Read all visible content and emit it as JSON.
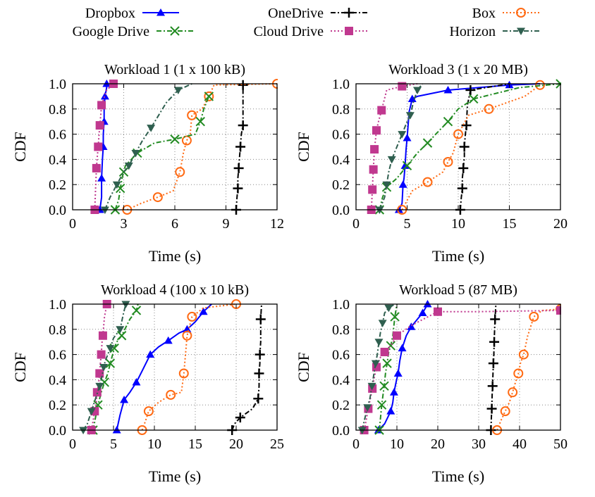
{
  "legend": [
    {
      "label": "Dropbox",
      "color": "#0000ff",
      "marker": "triangle-up",
      "dash": "solid"
    },
    {
      "label": "OneDrive",
      "color": "#000000",
      "marker": "plus",
      "dash": "dashdot"
    },
    {
      "label": "Box",
      "color": "#ff6a13",
      "marker": "circle-open",
      "dash": "dotted"
    },
    {
      "label": "Google Drive",
      "color": "#228b22",
      "marker": "x",
      "dash": "dashdot"
    },
    {
      "label": "Cloud Drive",
      "color": "#c0388f",
      "marker": "square",
      "dash": "dotted"
    },
    {
      "label": "Horizon",
      "color": "#2f5f4f",
      "marker": "triangle-down",
      "dash": "dashdot"
    }
  ],
  "chart_data": [
    {
      "type": "line",
      "title": "Workload 1 (1 x 100 kB)",
      "xlabel": "Time (s)",
      "ylabel": "CDF",
      "xlim": [
        0,
        12
      ],
      "ylim": [
        0,
        1
      ],
      "xticks": [
        "0",
        "3",
        "6",
        "9",
        "12"
      ],
      "yticks": [
        "0.0",
        "0.2",
        "0.4",
        "0.6",
        "0.8",
        "1.0"
      ],
      "grid": true,
      "series": [
        {
          "name": "Dropbox",
          "x": [
            1.6,
            1.7,
            1.7,
            1.75,
            1.8,
            1.8,
            1.85,
            1.85,
            1.9,
            2.0,
            2.0
          ],
          "y": [
            0.0,
            0.1,
            0.25,
            0.4,
            0.5,
            0.6,
            0.7,
            0.8,
            0.9,
            0.97,
            1.0
          ]
        },
        {
          "name": "OneDrive",
          "x": [
            9.6,
            9.65,
            9.7,
            9.7,
            9.75,
            9.8,
            9.85,
            9.9,
            10.0,
            10.0,
            10.0
          ],
          "y": [
            0.0,
            0.1,
            0.17,
            0.25,
            0.33,
            0.42,
            0.5,
            0.6,
            0.67,
            0.83,
            0.99
          ]
        },
        {
          "name": "Box",
          "x": [
            3.2,
            4.0,
            5.0,
            5.9,
            6.3,
            6.5,
            6.7,
            6.9,
            7.0,
            7.6,
            8.0,
            8.3,
            12.0
          ],
          "y": [
            0.0,
            0.05,
            0.1,
            0.15,
            0.3,
            0.45,
            0.55,
            0.6,
            0.75,
            0.8,
            0.9,
            0.99,
            1.0
          ]
        },
        {
          "name": "Google Drive",
          "x": [
            2.5,
            2.7,
            2.8,
            2.9,
            3.0,
            3.1,
            3.8,
            4.8,
            6.0,
            7.2,
            7.5,
            7.7,
            8.0
          ],
          "y": [
            0.0,
            0.08,
            0.17,
            0.25,
            0.3,
            0.35,
            0.45,
            0.53,
            0.56,
            0.6,
            0.7,
            0.8,
            0.9
          ]
        },
        {
          "name": "Cloud Drive",
          "x": [
            1.3,
            1.35,
            1.4,
            1.45,
            1.5,
            1.55,
            1.6,
            1.65,
            1.7,
            2.0,
            2.4
          ],
          "y": [
            0.0,
            0.17,
            0.33,
            0.42,
            0.5,
            0.6,
            0.67,
            0.75,
            0.83,
            0.95,
            1.0
          ]
        },
        {
          "name": "Horizon",
          "x": [
            1.9,
            2.2,
            2.6,
            3.0,
            3.3,
            3.5,
            3.7,
            4.1,
            4.6,
            5.5,
            6.2,
            7.0
          ],
          "y": [
            0.0,
            0.1,
            0.2,
            0.3,
            0.35,
            0.4,
            0.45,
            0.55,
            0.65,
            0.85,
            0.95,
            1.0
          ]
        }
      ]
    },
    {
      "type": "line",
      "title": "Workload 3 (1 x 20 MB)",
      "xlabel": "Time (s)",
      "ylabel": "CDF",
      "xlim": [
        0,
        20
      ],
      "ylim": [
        0,
        1
      ],
      "xticks": [
        "0",
        "5",
        "10",
        "15",
        "20"
      ],
      "yticks": [
        "0.0",
        "0.2",
        "0.4",
        "0.6",
        "0.8",
        "1.0"
      ],
      "grid": true,
      "series": [
        {
          "name": "Dropbox",
          "x": [
            4.2,
            4.5,
            4.6,
            4.7,
            4.8,
            4.9,
            5.0,
            5.2,
            5.5,
            6.0,
            9.0,
            12.0,
            15.0,
            18.0
          ],
          "y": [
            0.0,
            0.05,
            0.2,
            0.25,
            0.35,
            0.48,
            0.57,
            0.78,
            0.88,
            0.9,
            0.95,
            0.97,
            0.99,
            1.0
          ]
        },
        {
          "name": "OneDrive",
          "x": [
            10.2,
            10.3,
            10.4,
            10.4,
            10.5,
            10.6,
            10.6,
            10.7,
            10.8,
            10.9,
            11.2,
            15.0
          ],
          "y": [
            0.0,
            0.1,
            0.17,
            0.25,
            0.33,
            0.42,
            0.5,
            0.6,
            0.67,
            0.83,
            0.95,
            1.0
          ]
        },
        {
          "name": "Box",
          "x": [
            4.5,
            5.5,
            7.0,
            8.5,
            9.0,
            9.5,
            10.0,
            11.0,
            13.0,
            16.5,
            18.0
          ],
          "y": [
            0.0,
            0.15,
            0.22,
            0.3,
            0.38,
            0.45,
            0.6,
            0.75,
            0.8,
            0.9,
            0.99
          ]
        },
        {
          "name": "Google Drive",
          "x": [
            2.3,
            2.6,
            3.0,
            4.0,
            5.0,
            6.0,
            7.0,
            7.8,
            9.0,
            10.0,
            11.5,
            16.0,
            20.0
          ],
          "y": [
            0.0,
            0.1,
            0.18,
            0.25,
            0.35,
            0.45,
            0.53,
            0.6,
            0.7,
            0.8,
            0.88,
            0.97,
            1.0
          ]
        },
        {
          "name": "Cloud Drive",
          "x": [
            1.5,
            1.55,
            1.6,
            1.65,
            1.7,
            1.75,
            1.8,
            1.9,
            2.0,
            2.2,
            2.5,
            3.0,
            4.5,
            6.0
          ],
          "y": [
            0.0,
            0.08,
            0.16,
            0.25,
            0.32,
            0.4,
            0.48,
            0.55,
            0.63,
            0.7,
            0.79,
            0.95,
            0.98,
            1.0
          ]
        },
        {
          "name": "Horizon",
          "x": [
            2.3,
            2.8,
            3.0,
            3.2,
            3.5,
            4.0,
            4.5,
            5.0,
            5.3,
            5.6,
            6.0,
            6.5
          ],
          "y": [
            0.0,
            0.1,
            0.2,
            0.3,
            0.4,
            0.5,
            0.6,
            0.7,
            0.75,
            0.85,
            0.95,
            1.0
          ]
        }
      ]
    },
    {
      "type": "line",
      "title": "Workload 4 (100 x 10 kB)",
      "xlabel": "Time (s)",
      "ylabel": "CDF",
      "xlim": [
        0,
        25
      ],
      "ylim": [
        0,
        1
      ],
      "xticks": [
        "0",
        "5",
        "10",
        "15",
        "20",
        "25"
      ],
      "yticks": [
        "0.0",
        "0.2",
        "0.4",
        "0.6",
        "0.8",
        "1.0"
      ],
      "grid": true,
      "series": [
        {
          "name": "Dropbox",
          "x": [
            5.4,
            5.8,
            6.3,
            7.0,
            7.8,
            8.5,
            9.5,
            10.5,
            11.7,
            13.0,
            14.0,
            15.0,
            16.0,
            17.0
          ],
          "y": [
            0.0,
            0.12,
            0.24,
            0.3,
            0.38,
            0.47,
            0.6,
            0.66,
            0.71,
            0.77,
            0.8,
            0.86,
            0.94,
            1.0
          ]
        },
        {
          "name": "OneDrive",
          "x": [
            19.5,
            19.8,
            20.5,
            22.0,
            22.7,
            22.8,
            22.8,
            22.9,
            22.9,
            23.0,
            23.0,
            23.1
          ],
          "y": [
            0.0,
            0.05,
            0.1,
            0.17,
            0.25,
            0.35,
            0.45,
            0.53,
            0.6,
            0.7,
            0.88,
            1.0
          ]
        },
        {
          "name": "Box",
          "x": [
            8.5,
            8.9,
            9.3,
            10.5,
            12.0,
            13.3,
            13.6,
            13.8,
            14.0,
            14.2,
            14.6,
            16.0,
            20.0
          ],
          "y": [
            0.0,
            0.07,
            0.15,
            0.22,
            0.28,
            0.3,
            0.45,
            0.6,
            0.75,
            0.8,
            0.9,
            0.97,
            1.0
          ]
        },
        {
          "name": "Google Drive",
          "x": [
            2.5,
            2.8,
            3.1,
            3.5,
            3.9,
            4.3,
            4.6,
            4.9,
            5.1,
            5.4,
            6.0,
            7.0,
            7.8,
            8.0
          ],
          "y": [
            0.0,
            0.1,
            0.2,
            0.3,
            0.38,
            0.45,
            0.53,
            0.6,
            0.65,
            0.7,
            0.75,
            0.88,
            0.95,
            1.0
          ]
        },
        {
          "name": "Cloud Drive",
          "x": [
            2.3,
            2.5,
            2.7,
            2.9,
            3.0,
            3.2,
            3.3,
            3.4,
            3.5,
            3.6,
            3.7,
            3.9,
            4.2
          ],
          "y": [
            0.0,
            0.07,
            0.15,
            0.22,
            0.3,
            0.38,
            0.45,
            0.53,
            0.6,
            0.7,
            0.75,
            0.9,
            1.0
          ]
        },
        {
          "name": "Horizon",
          "x": [
            1.3,
            1.8,
            2.3,
            2.8,
            3.3,
            3.6,
            3.8,
            4.0,
            4.6,
            5.0,
            5.8,
            6.2,
            6.5
          ],
          "y": [
            0.0,
            0.05,
            0.15,
            0.25,
            0.35,
            0.43,
            0.5,
            0.55,
            0.65,
            0.73,
            0.8,
            0.92,
            1.0
          ]
        }
      ]
    },
    {
      "type": "line",
      "title": "Workload 5 (87 MB)",
      "xlabel": "Time (s)",
      "ylabel": "CDF",
      "xlim": [
        0,
        50
      ],
      "ylim": [
        0,
        1
      ],
      "xticks": [
        "0",
        "10",
        "20",
        "30",
        "40",
        "50"
      ],
      "yticks": [
        "0.0",
        "0.2",
        "0.4",
        "0.6",
        "0.8",
        "1.0"
      ],
      "grid": true,
      "series": [
        {
          "name": "Dropbox",
          "x": [
            5.5,
            7.0,
            8.5,
            9.0,
            9.3,
            9.8,
            10.3,
            10.7,
            11.3,
            12.3,
            13.5,
            15.0,
            16.3,
            17.0,
            17.5
          ],
          "y": [
            0.0,
            0.05,
            0.15,
            0.22,
            0.3,
            0.38,
            0.45,
            0.55,
            0.65,
            0.75,
            0.82,
            0.88,
            0.93,
            0.97,
            1.0
          ]
        },
        {
          "name": "OneDrive",
          "x": [
            33.0,
            33.1,
            33.2,
            33.3,
            33.4,
            33.5,
            33.6,
            33.7,
            33.8,
            33.9,
            34.0,
            34.2
          ],
          "y": [
            0.0,
            0.1,
            0.17,
            0.28,
            0.35,
            0.45,
            0.53,
            0.6,
            0.7,
            0.8,
            0.88,
            1.0
          ]
        },
        {
          "name": "Box",
          "x": [
            34.5,
            35.5,
            36.5,
            37.5,
            38.3,
            39.0,
            39.7,
            40.2,
            41.0,
            42.0,
            43.5,
            45.5,
            50.0
          ],
          "y": [
            0.0,
            0.08,
            0.15,
            0.22,
            0.3,
            0.38,
            0.45,
            0.53,
            0.6,
            0.75,
            0.9,
            0.95,
            0.96
          ]
        },
        {
          "name": "Google Drive",
          "x": [
            5.7,
            6.0,
            6.3,
            6.6,
            6.9,
            7.2,
            7.6,
            8.0,
            8.5,
            9.0,
            9.5,
            10.0
          ],
          "y": [
            0.0,
            0.1,
            0.2,
            0.28,
            0.35,
            0.45,
            0.53,
            0.62,
            0.67,
            0.75,
            0.9,
            1.0
          ]
        },
        {
          "name": "Cloud Drive",
          "x": [
            2.0,
            2.5,
            3.0,
            3.5,
            4.0,
            4.5,
            5.0,
            6.0,
            7.0,
            8.5,
            10.0,
            13.5,
            20.0,
            30.0,
            50.0
          ],
          "y": [
            0.0,
            0.08,
            0.17,
            0.25,
            0.33,
            0.42,
            0.5,
            0.58,
            0.62,
            0.67,
            0.75,
            0.83,
            0.94,
            0.94,
            0.95
          ]
        },
        {
          "name": "Horizon",
          "x": [
            1.5,
            2.2,
            2.8,
            3.4,
            3.9,
            4.4,
            4.8,
            5.2,
            5.6,
            6.0,
            6.5,
            7.0,
            8.0,
            9.5
          ],
          "y": [
            0.0,
            0.1,
            0.18,
            0.25,
            0.35,
            0.45,
            0.53,
            0.6,
            0.7,
            0.78,
            0.85,
            0.93,
            0.97,
            1.0
          ]
        }
      ]
    }
  ]
}
